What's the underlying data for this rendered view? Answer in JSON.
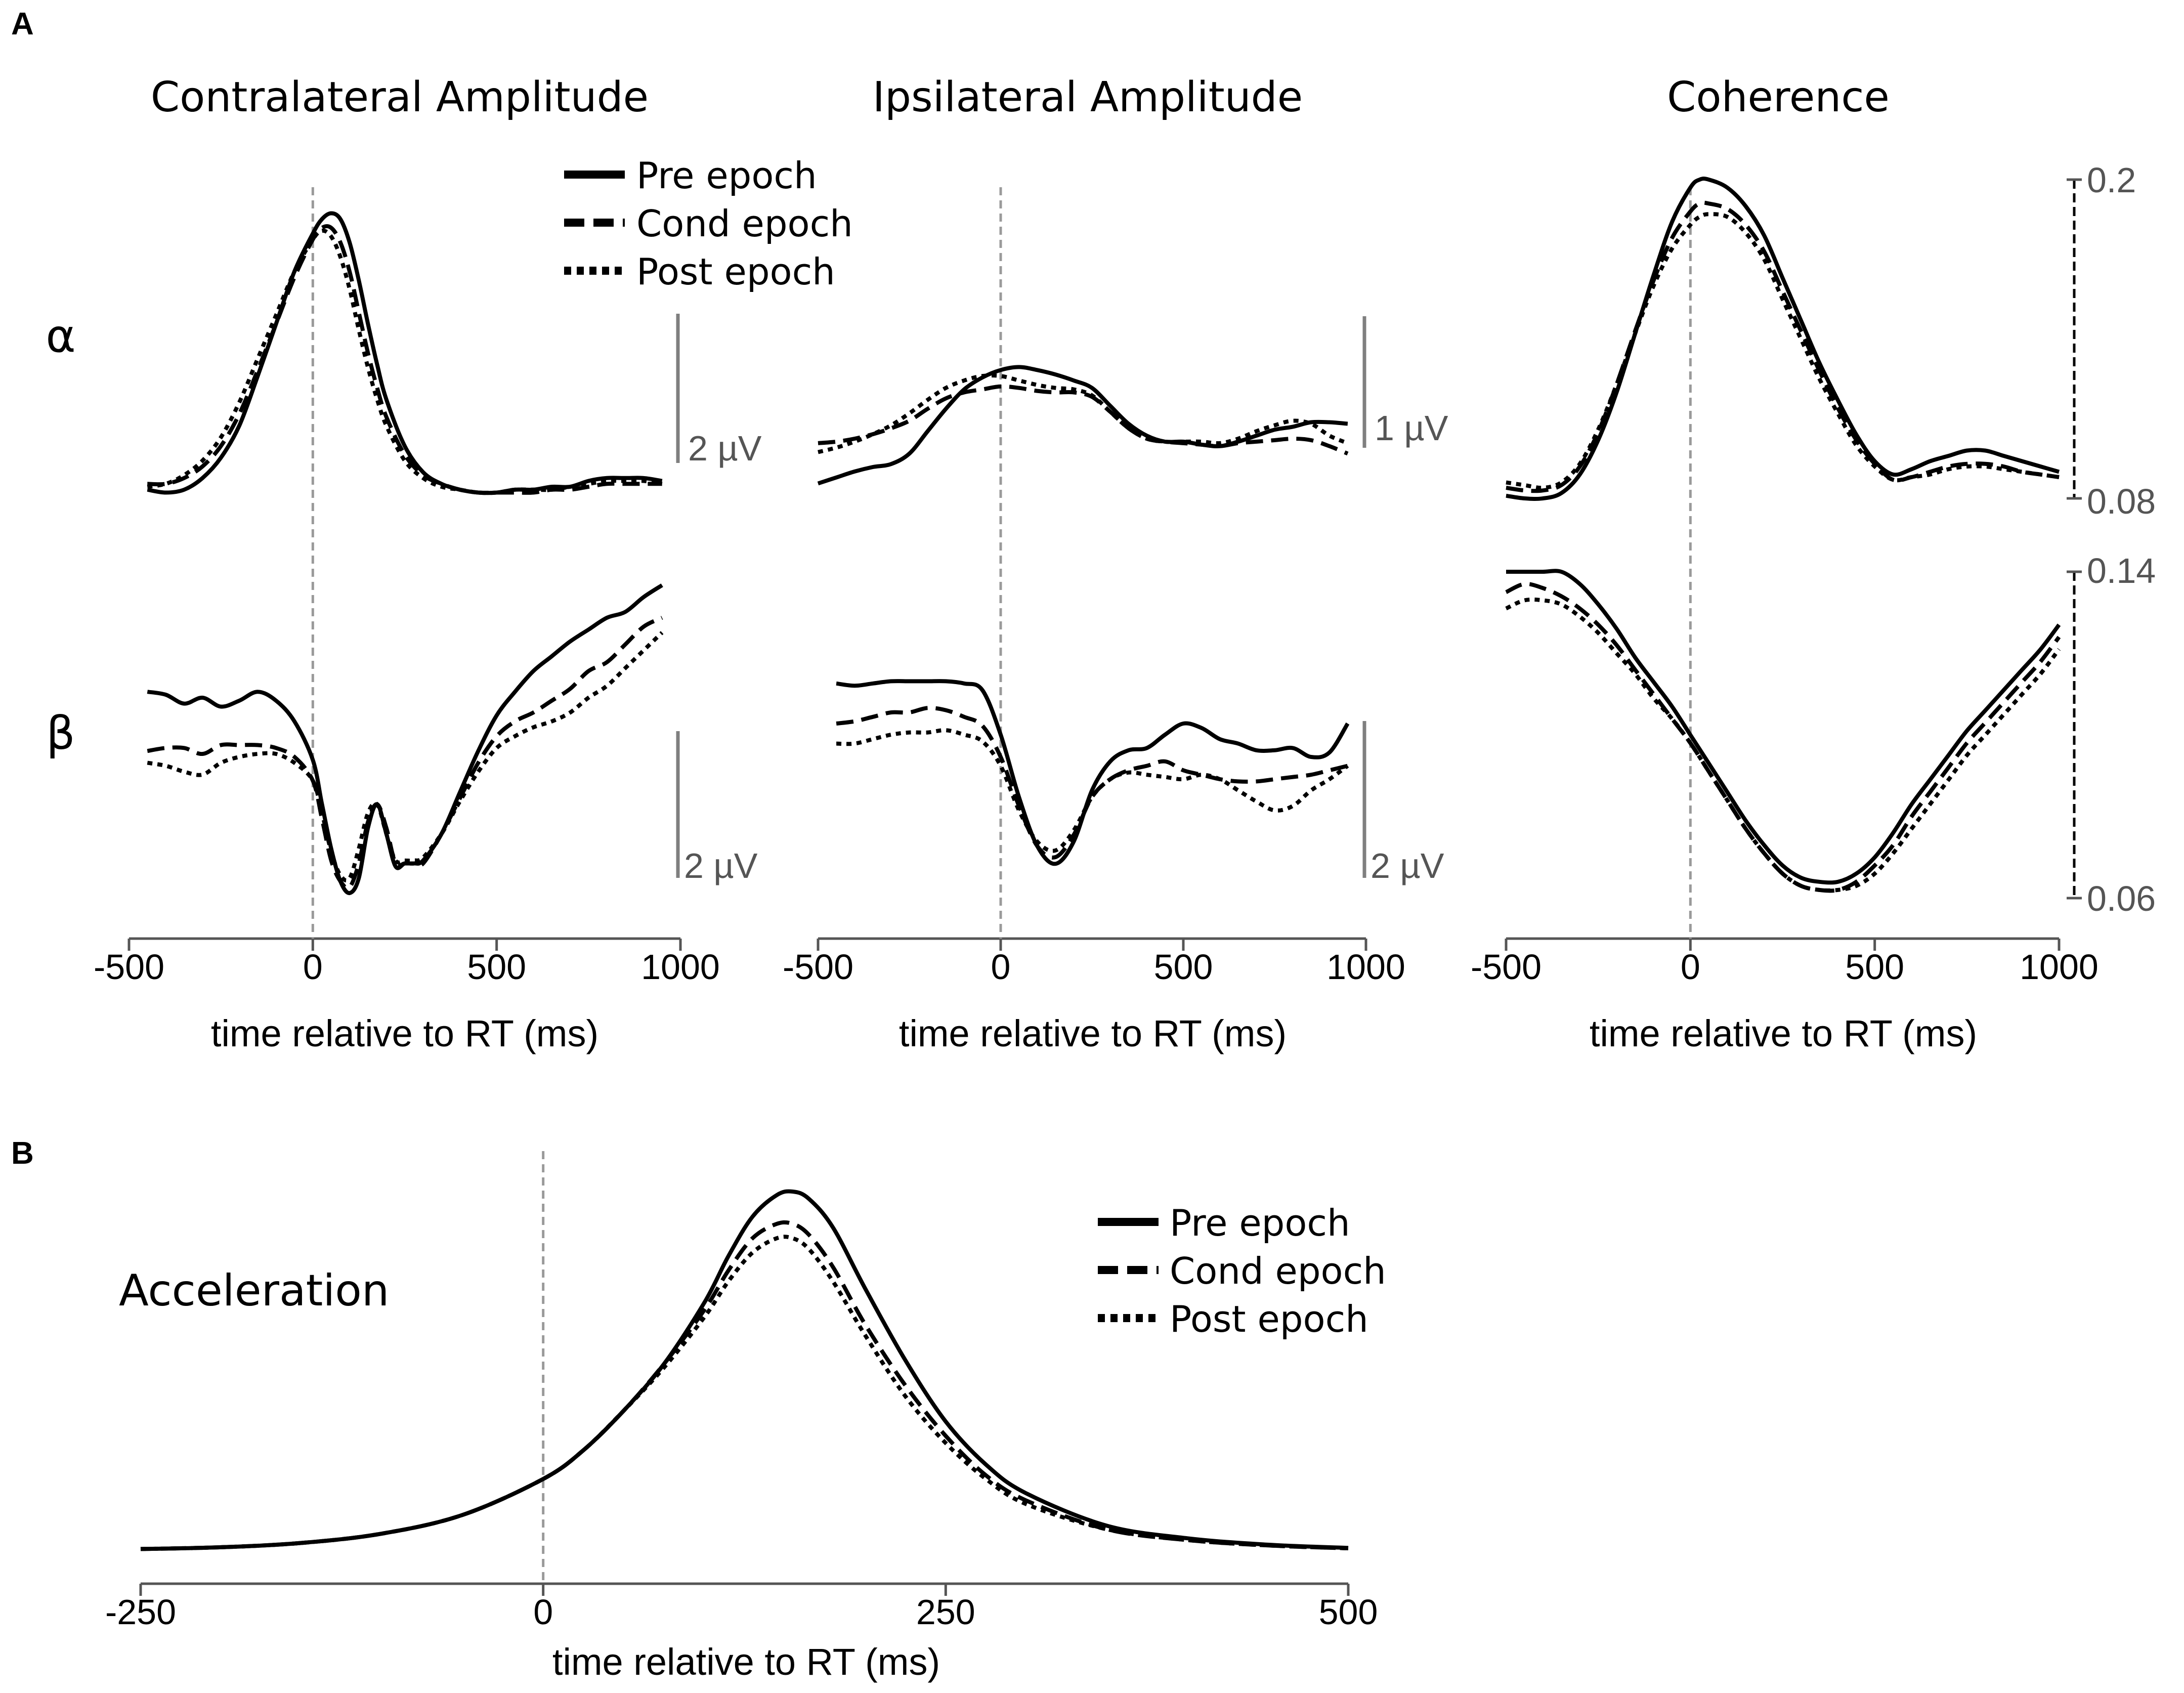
{
  "figure": {
    "panel_a_label": "A",
    "panel_b_label": "B",
    "row_alpha_label": "α",
    "row_beta_label": "β",
    "col_titles": [
      "Contralateral Amplitude",
      "Ipsilateral Amplitude",
      "Coherence"
    ],
    "xlabel": "time relative to RT (ms)",
    "b_title": "Acceleration",
    "scalebars": {
      "contra_alpha": "2 µV",
      "ipsi_alpha": "1 µV",
      "contra_beta": "2 µV",
      "ipsi_beta": "2 µV"
    },
    "coherence_ticks": {
      "alpha": [
        "0.2",
        "0.08"
      ],
      "beta": [
        "0.14",
        "0.06"
      ]
    },
    "legend": [
      "Pre epoch",
      "Cond epoch",
      "Post epoch"
    ]
  },
  "chart_data": [
    {
      "id": "contra_alpha",
      "type": "line",
      "title": "Contralateral Amplitude",
      "row": "α",
      "xlabel": "time relative to RT (ms)",
      "xlim": [
        -500,
        1000
      ],
      "xticks": [
        "-500",
        "0",
        "500",
        "1000"
      ],
      "ylim": [
        0,
        1
      ],
      "x": [
        -450,
        -400,
        -350,
        -300,
        -250,
        -200,
        -150,
        -100,
        -50,
        0,
        25,
        50,
        75,
        100,
        125,
        150,
        175,
        200,
        250,
        300,
        350,
        400,
        450,
        500,
        550,
        600,
        650,
        700,
        750,
        800,
        850,
        900,
        950
      ],
      "series": [
        {
          "name": "Pre epoch",
          "values": [
            0.03,
            0.02,
            0.03,
            0.07,
            0.14,
            0.25,
            0.42,
            0.6,
            0.78,
            0.91,
            0.96,
            0.98,
            0.96,
            0.88,
            0.75,
            0.6,
            0.46,
            0.34,
            0.18,
            0.09,
            0.05,
            0.03,
            0.02,
            0.02,
            0.03,
            0.03,
            0.04,
            0.04,
            0.06,
            0.07,
            0.07,
            0.07,
            0.06
          ]
        },
        {
          "name": "Cond epoch",
          "values": [
            0.05,
            0.05,
            0.07,
            0.11,
            0.18,
            0.29,
            0.44,
            0.6,
            0.76,
            0.89,
            0.93,
            0.93,
            0.88,
            0.78,
            0.64,
            0.5,
            0.38,
            0.28,
            0.15,
            0.08,
            0.05,
            0.03,
            0.02,
            0.02,
            0.02,
            0.02,
            0.03,
            0.03,
            0.04,
            0.05,
            0.05,
            0.05,
            0.05
          ]
        },
        {
          "name": "Post epoch",
          "values": [
            0.04,
            0.05,
            0.08,
            0.13,
            0.21,
            0.33,
            0.48,
            0.63,
            0.78,
            0.89,
            0.92,
            0.9,
            0.83,
            0.72,
            0.58,
            0.45,
            0.34,
            0.25,
            0.13,
            0.07,
            0.04,
            0.03,
            0.02,
            0.02,
            0.03,
            0.03,
            0.03,
            0.04,
            0.05,
            0.06,
            0.06,
            0.06,
            0.05
          ]
        }
      ]
    },
    {
      "id": "ipsi_alpha",
      "type": "line",
      "title": "Ipsilateral Amplitude",
      "row": "α",
      "xlabel": "time relative to RT (ms)",
      "xlim": [
        -500,
        1000
      ],
      "xticks": [
        "-500",
        "0",
        "500",
        "1000"
      ],
      "ylim": [
        0,
        1
      ],
      "x": [
        -500,
        -450,
        -400,
        -350,
        -300,
        -250,
        -200,
        -150,
        -100,
        -50,
        0,
        50,
        100,
        150,
        200,
        250,
        300,
        350,
        400,
        450,
        500,
        550,
        600,
        650,
        700,
        750,
        800,
        850,
        900,
        950
      ],
      "series": [
        {
          "name": "Pre epoch",
          "values": [
            0.1,
            0.14,
            0.18,
            0.21,
            0.23,
            0.3,
            0.45,
            0.6,
            0.73,
            0.81,
            0.86,
            0.88,
            0.86,
            0.83,
            0.79,
            0.74,
            0.62,
            0.5,
            0.42,
            0.38,
            0.38,
            0.36,
            0.35,
            0.38,
            0.42,
            0.46,
            0.48,
            0.51,
            0.51,
            0.5
          ]
        },
        {
          "name": "Cond epoch",
          "values": [
            0.37,
            0.38,
            0.4,
            0.43,
            0.47,
            0.52,
            0.6,
            0.67,
            0.71,
            0.73,
            0.75,
            0.74,
            0.72,
            0.71,
            0.71,
            0.68,
            0.58,
            0.47,
            0.4,
            0.38,
            0.37,
            0.36,
            0.35,
            0.37,
            0.38,
            0.39,
            0.4,
            0.39,
            0.35,
            0.3
          ]
        },
        {
          "name": "Post epoch",
          "values": [
            0.31,
            0.34,
            0.38,
            0.43,
            0.49,
            0.57,
            0.66,
            0.74,
            0.79,
            0.82,
            0.82,
            0.79,
            0.76,
            0.74,
            0.73,
            0.69,
            0.58,
            0.47,
            0.4,
            0.38,
            0.38,
            0.38,
            0.37,
            0.4,
            0.45,
            0.49,
            0.52,
            0.5,
            0.42,
            0.37
          ]
        }
      ]
    },
    {
      "id": "coh_alpha",
      "type": "line",
      "title": "Coherence",
      "row": "α",
      "xlabel": "time relative to RT (ms)",
      "xlim": [
        -500,
        1000
      ],
      "xticks": [
        "-500",
        "0",
        "500",
        "1000"
      ],
      "ylim": [
        0.08,
        0.2
      ],
      "yticks": [
        "0.2",
        "0.08"
      ],
      "x": [
        -500,
        -450,
        -400,
        -350,
        -300,
        -250,
        -200,
        -150,
        -100,
        -50,
        0,
        25,
        50,
        100,
        150,
        200,
        250,
        300,
        350,
        400,
        450,
        500,
        550,
        600,
        650,
        700,
        750,
        800,
        850,
        900,
        950,
        1000
      ],
      "series": [
        {
          "name": "Pre epoch",
          "values": [
            0.081,
            0.08,
            0.08,
            0.082,
            0.089,
            0.102,
            0.12,
            0.142,
            0.164,
            0.184,
            0.197,
            0.2,
            0.2,
            0.197,
            0.19,
            0.179,
            0.163,
            0.147,
            0.131,
            0.117,
            0.104,
            0.094,
            0.089,
            0.091,
            0.094,
            0.096,
            0.098,
            0.098,
            0.096,
            0.094,
            0.092,
            0.09
          ]
        },
        {
          "name": "Cond epoch",
          "values": [
            0.084,
            0.083,
            0.083,
            0.085,
            0.092,
            0.105,
            0.123,
            0.143,
            0.162,
            0.178,
            0.188,
            0.191,
            0.191,
            0.189,
            0.183,
            0.173,
            0.158,
            0.143,
            0.128,
            0.114,
            0.102,
            0.093,
            0.087,
            0.088,
            0.09,
            0.092,
            0.093,
            0.093,
            0.092,
            0.09,
            0.089,
            0.088
          ]
        },
        {
          "name": "Post epoch",
          "values": [
            0.086,
            0.085,
            0.084,
            0.086,
            0.093,
            0.106,
            0.123,
            0.142,
            0.16,
            0.174,
            0.183,
            0.186,
            0.187,
            0.186,
            0.18,
            0.17,
            0.155,
            0.14,
            0.125,
            0.112,
            0.1,
            0.092,
            0.087,
            0.088,
            0.089,
            0.091,
            0.092,
            0.092,
            0.091,
            0.09,
            0.089,
            0.088
          ]
        }
      ]
    },
    {
      "id": "contra_beta",
      "type": "line",
      "title": "Contralateral Amplitude",
      "row": "β",
      "xlabel": "time relative to RT (ms)",
      "xlim": [
        -500,
        1000
      ],
      "xticks": [
        "-500",
        "0",
        "500",
        "1000"
      ],
      "ylim": [
        0,
        1
      ],
      "x": [
        -450,
        -400,
        -350,
        -300,
        -250,
        -200,
        -150,
        -100,
        -50,
        0,
        25,
        50,
        75,
        100,
        125,
        150,
        175,
        200,
        225,
        250,
        275,
        300,
        350,
        400,
        450,
        500,
        550,
        600,
        650,
        700,
        750,
        800,
        850,
        900,
        950
      ],
      "series": [
        {
          "name": "Pre epoch",
          "values": [
            0.68,
            0.67,
            0.64,
            0.66,
            0.63,
            0.65,
            0.68,
            0.65,
            0.58,
            0.45,
            0.3,
            0.15,
            0.04,
            0.0,
            0.05,
            0.22,
            0.3,
            0.2,
            0.09,
            0.1,
            0.1,
            0.11,
            0.2,
            0.34,
            0.48,
            0.6,
            0.68,
            0.75,
            0.8,
            0.85,
            0.89,
            0.93,
            0.95,
            1.0,
            1.04
          ]
        },
        {
          "name": "Cond epoch",
          "values": [
            0.48,
            0.49,
            0.49,
            0.47,
            0.5,
            0.5,
            0.5,
            0.49,
            0.46,
            0.38,
            0.25,
            0.11,
            0.04,
            0.02,
            0.1,
            0.24,
            0.3,
            0.22,
            0.1,
            0.1,
            0.1,
            0.1,
            0.2,
            0.32,
            0.44,
            0.53,
            0.58,
            0.61,
            0.65,
            0.69,
            0.75,
            0.78,
            0.84,
            0.9,
            0.93
          ]
        },
        {
          "name": "Post epoch",
          "values": [
            0.44,
            0.43,
            0.41,
            0.4,
            0.44,
            0.46,
            0.47,
            0.47,
            0.44,
            0.38,
            0.27,
            0.14,
            0.06,
            0.05,
            0.15,
            0.27,
            0.3,
            0.2,
            0.11,
            0.11,
            0.11,
            0.12,
            0.2,
            0.31,
            0.41,
            0.49,
            0.53,
            0.56,
            0.58,
            0.61,
            0.66,
            0.7,
            0.76,
            0.82,
            0.88
          ]
        }
      ]
    },
    {
      "id": "ipsi_beta",
      "type": "line",
      "title": "Ipsilateral Amplitude",
      "row": "β",
      "xlabel": "time relative to RT (ms)",
      "xlim": [
        -500,
        1000
      ],
      "xticks": [
        "-500",
        "0",
        "500",
        "1000"
      ],
      "ylim": [
        0,
        1
      ],
      "x": [
        -450,
        -400,
        -350,
        -300,
        -250,
        -200,
        -150,
        -100,
        -50,
        0,
        50,
        100,
        150,
        200,
        250,
        300,
        350,
        400,
        450,
        500,
        550,
        600,
        650,
        700,
        750,
        800,
        850,
        900,
        950
      ],
      "series": [
        {
          "name": "Pre epoch",
          "values": [
            0.93,
            0.92,
            0.93,
            0.94,
            0.94,
            0.94,
            0.94,
            0.93,
            0.9,
            0.7,
            0.42,
            0.2,
            0.12,
            0.22,
            0.45,
            0.58,
            0.63,
            0.64,
            0.7,
            0.75,
            0.73,
            0.68,
            0.66,
            0.63,
            0.63,
            0.64,
            0.6,
            0.62,
            0.75
          ]
        },
        {
          "name": "Cond epoch",
          "values": [
            0.75,
            0.76,
            0.78,
            0.8,
            0.8,
            0.82,
            0.81,
            0.78,
            0.74,
            0.6,
            0.38,
            0.2,
            0.15,
            0.25,
            0.42,
            0.5,
            0.54,
            0.56,
            0.58,
            0.54,
            0.52,
            0.5,
            0.49,
            0.49,
            0.5,
            0.51,
            0.52,
            0.54,
            0.56
          ]
        },
        {
          "name": "Post epoch",
          "values": [
            0.66,
            0.66,
            0.68,
            0.7,
            0.71,
            0.71,
            0.72,
            0.7,
            0.67,
            0.56,
            0.36,
            0.22,
            0.18,
            0.27,
            0.42,
            0.5,
            0.53,
            0.52,
            0.51,
            0.5,
            0.52,
            0.5,
            0.45,
            0.4,
            0.36,
            0.38,
            0.45,
            0.5,
            0.56
          ]
        }
      ]
    },
    {
      "id": "coh_beta",
      "type": "line",
      "title": "Coherence",
      "row": "β",
      "xlabel": "time relative to RT (ms)",
      "xlim": [
        -500,
        1000
      ],
      "xticks": [
        "-500",
        "0",
        "500",
        "1000"
      ],
      "ylim": [
        0.06,
        0.14
      ],
      "yticks": [
        "0.14",
        "0.06"
      ],
      "x": [
        -500,
        -450,
        -400,
        -350,
        -300,
        -250,
        -200,
        -150,
        -100,
        -50,
        0,
        50,
        100,
        150,
        200,
        250,
        300,
        350,
        400,
        450,
        500,
        550,
        600,
        650,
        700,
        750,
        800,
        850,
        900,
        950,
        1000
      ],
      "series": [
        {
          "name": "Pre epoch",
          "values": [
            0.14,
            0.14,
            0.14,
            0.14,
            0.137,
            0.132,
            0.126,
            0.119,
            0.113,
            0.107,
            0.1,
            0.093,
            0.086,
            0.079,
            0.073,
            0.068,
            0.065,
            0.064,
            0.064,
            0.066,
            0.07,
            0.076,
            0.083,
            0.089,
            0.095,
            0.101,
            0.106,
            0.111,
            0.116,
            0.121,
            0.127
          ]
        },
        {
          "name": "Cond epoch",
          "values": [
            0.135,
            0.137,
            0.136,
            0.134,
            0.131,
            0.127,
            0.122,
            0.116,
            0.11,
            0.104,
            0.098,
            0.091,
            0.084,
            0.077,
            0.071,
            0.066,
            0.063,
            0.062,
            0.062,
            0.064,
            0.068,
            0.073,
            0.08,
            0.086,
            0.092,
            0.098,
            0.103,
            0.108,
            0.113,
            0.118,
            0.124
          ]
        },
        {
          "name": "Post epoch",
          "values": [
            0.131,
            0.133,
            0.133,
            0.132,
            0.129,
            0.125,
            0.12,
            0.115,
            0.109,
            0.104,
            0.098,
            0.091,
            0.084,
            0.077,
            0.071,
            0.066,
            0.063,
            0.062,
            0.062,
            0.063,
            0.066,
            0.071,
            0.077,
            0.083,
            0.089,
            0.095,
            0.1,
            0.105,
            0.11,
            0.115,
            0.121
          ]
        }
      ]
    },
    {
      "id": "acceleration",
      "type": "line",
      "title": "Acceleration",
      "xlabel": "time relative to RT (ms)",
      "xlim": [
        -250,
        500
      ],
      "xticks": [
        "-250",
        "0",
        "250",
        "500"
      ],
      "ylim": [
        0,
        1
      ],
      "x": [
        -250,
        -200,
        -150,
        -100,
        -50,
        0,
        25,
        50,
        75,
        100,
        115,
        130,
        145,
        155,
        165,
        180,
        200,
        225,
        250,
        275,
        300,
        350,
        400,
        450,
        500
      ],
      "series": [
        {
          "name": "Pre epoch",
          "values": [
            0.005,
            0.01,
            0.022,
            0.048,
            0.1,
            0.2,
            0.28,
            0.39,
            0.52,
            0.69,
            0.82,
            0.93,
            0.99,
            1.0,
            0.98,
            0.9,
            0.73,
            0.53,
            0.36,
            0.24,
            0.16,
            0.07,
            0.035,
            0.017,
            0.008
          ]
        },
        {
          "name": "Cond epoch",
          "values": [
            0.005,
            0.01,
            0.022,
            0.048,
            0.1,
            0.2,
            0.28,
            0.39,
            0.52,
            0.67,
            0.78,
            0.87,
            0.91,
            0.91,
            0.88,
            0.79,
            0.63,
            0.46,
            0.32,
            0.21,
            0.14,
            0.06,
            0.03,
            0.015,
            0.007
          ]
        },
        {
          "name": "Post epoch",
          "values": [
            0.005,
            0.01,
            0.022,
            0.048,
            0.1,
            0.2,
            0.28,
            0.39,
            0.51,
            0.65,
            0.75,
            0.83,
            0.87,
            0.87,
            0.84,
            0.75,
            0.6,
            0.43,
            0.3,
            0.2,
            0.13,
            0.06,
            0.03,
            0.015,
            0.007
          ]
        }
      ]
    }
  ]
}
